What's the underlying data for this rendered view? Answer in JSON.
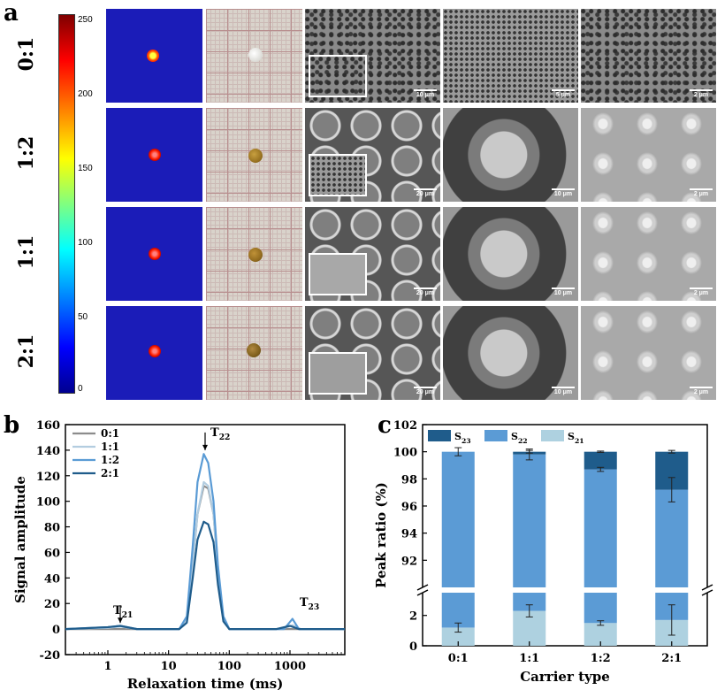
{
  "panel_a": {
    "letter": "a",
    "row_labels": [
      "0:1",
      "1:2",
      "1:1",
      "2:1"
    ],
    "colorbar_ticks": [
      "250",
      "200",
      "150",
      "100",
      "50",
      "0"
    ],
    "scale_labels": [
      [
        "10 μm",
        "5 μm",
        "2 μm"
      ],
      [
        "20 μm",
        "10 μm",
        "2 μm"
      ],
      [
        "20 μm",
        "10 μm",
        "2 μm"
      ],
      [
        "20 μm",
        "10 μm",
        "2 μm"
      ]
    ]
  },
  "panel_b": {
    "letter": "b",
    "chart_data": {
      "type": "line",
      "xlabel": "Relaxation time (ms)",
      "ylabel": "Signal amplitude",
      "xscale": "log",
      "xlim": [
        0.2,
        8000
      ],
      "ylim": [
        -20,
        160
      ],
      "xtick_labels": [
        "1",
        "10",
        "100",
        "1000"
      ],
      "ytick_labels": [
        "-20",
        "0",
        "20",
        "40",
        "60",
        "80",
        "100",
        "120",
        "140",
        "160"
      ],
      "annotations": [
        "T21",
        "T22",
        "T23"
      ],
      "legend_position": "top-left",
      "series": [
        {
          "name": "0:1",
          "color": "#8c8c8c",
          "x": [
            0.2,
            15,
            20,
            25,
            30,
            38,
            45,
            55,
            65,
            80,
            100,
            8000
          ],
          "y": [
            0,
            0,
            8,
            50,
            90,
            112,
            110,
            90,
            45,
            8,
            0,
            0
          ]
        },
        {
          "name": "1:1",
          "color": "#b3cde0",
          "x": [
            0.2,
            1,
            1.6,
            3,
            15,
            20,
            25,
            30,
            38,
            45,
            55,
            65,
            80,
            100,
            700,
            1100,
            1500,
            8000
          ],
          "y": [
            0,
            1,
            2,
            0,
            0,
            8,
            50,
            90,
            115,
            112,
            90,
            45,
            8,
            0,
            0,
            3,
            0,
            0
          ]
        },
        {
          "name": "1:2",
          "color": "#5a9bd5",
          "x": [
            0.2,
            1,
            1.6,
            3,
            15,
            20,
            25,
            30,
            38,
            45,
            55,
            65,
            80,
            100,
            800,
            1100,
            1400,
            8000
          ],
          "y": [
            0,
            1.5,
            2.5,
            0,
            0,
            10,
            65,
            115,
            137,
            130,
            100,
            50,
            10,
            0,
            0,
            8,
            0,
            0
          ]
        },
        {
          "name": "2:1",
          "color": "#1f5c8b",
          "x": [
            0.2,
            1,
            1.6,
            3,
            15,
            20,
            25,
            30,
            38,
            45,
            55,
            65,
            80,
            100,
            600,
            1000,
            1400,
            8000
          ],
          "y": [
            0,
            1.5,
            2.5,
            0,
            0,
            5,
            40,
            70,
            84,
            82,
            68,
            35,
            6,
            0,
            0,
            2.5,
            0,
            0
          ]
        }
      ]
    }
  },
  "panel_c": {
    "letter": "c",
    "chart_data": {
      "type": "bar",
      "stacked": true,
      "broken_axis": true,
      "xlabel": "Carrier type",
      "ylabel": "Peak ratio (%)",
      "categories": [
        "0:1",
        "1:1",
        "1:2",
        "2:1"
      ],
      "upper_ylim": [
        90,
        102
      ],
      "lower_ylim": [
        0,
        3.5
      ],
      "upper_ytick_labels": [
        "92",
        "94",
        "96",
        "98",
        "100",
        "102"
      ],
      "lower_ytick_labels": [
        "0",
        "2"
      ],
      "legend_position": "top",
      "series": [
        {
          "name": "S21",
          "color": "#aed1e0",
          "values": [
            1.2,
            2.3,
            1.5,
            1.7
          ],
          "errors": [
            0.3,
            0.4,
            0.15,
            1.0
          ]
        },
        {
          "name": "S22",
          "color": "#5b9bd5",
          "values": [
            98.8,
            97.5,
            97.2,
            95.5
          ],
          "errors": [
            0.3,
            0.4,
            0.15,
            0.9
          ]
        },
        {
          "name": "S23",
          "color": "#1f5c8b",
          "values": [
            0,
            0.2,
            1.3,
            2.8
          ],
          "errors": [
            0,
            0.1,
            0.05,
            0.1
          ]
        }
      ]
    }
  }
}
